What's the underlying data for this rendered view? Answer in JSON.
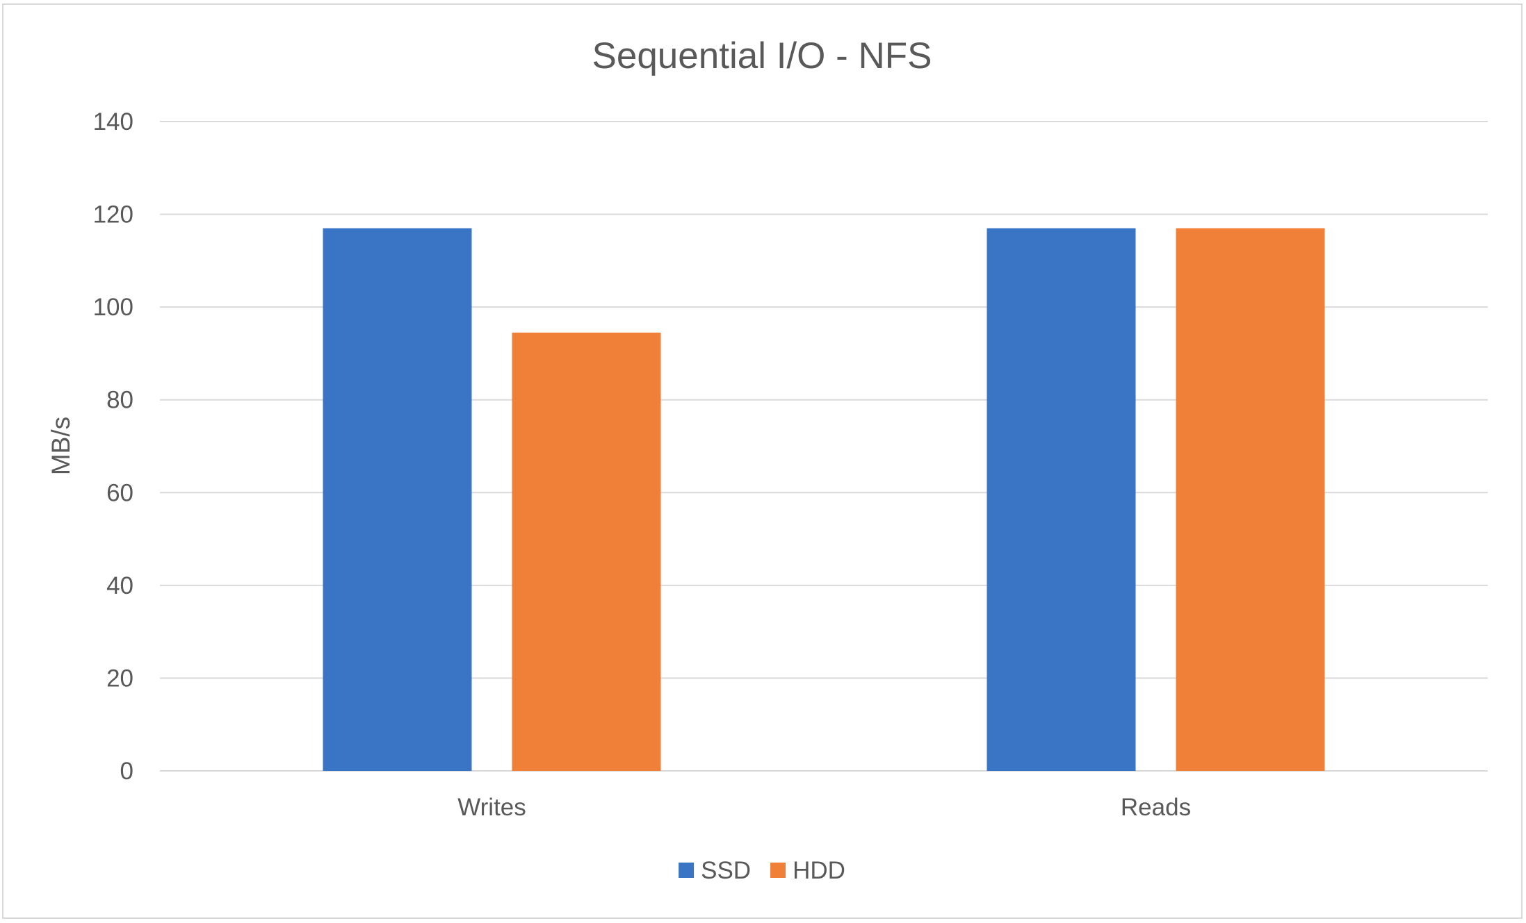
{
  "chart_data": {
    "type": "bar",
    "title": "Sequential I/O - NFS",
    "xlabel": "",
    "ylabel": "MB/s",
    "categories": [
      "Writes",
      "Reads"
    ],
    "series": [
      {
        "name": "SSD",
        "color": "#3a74c4",
        "values": [
          117,
          117
        ]
      },
      {
        "name": "HDD",
        "color": "#f07f38",
        "values": [
          94.5,
          117
        ]
      }
    ],
    "ylim": [
      0,
      140
    ],
    "yticks": [
      "0",
      "20",
      "40",
      "60",
      "80",
      "100",
      "120",
      "140"
    ],
    "grid": true,
    "legend": "bottom"
  }
}
